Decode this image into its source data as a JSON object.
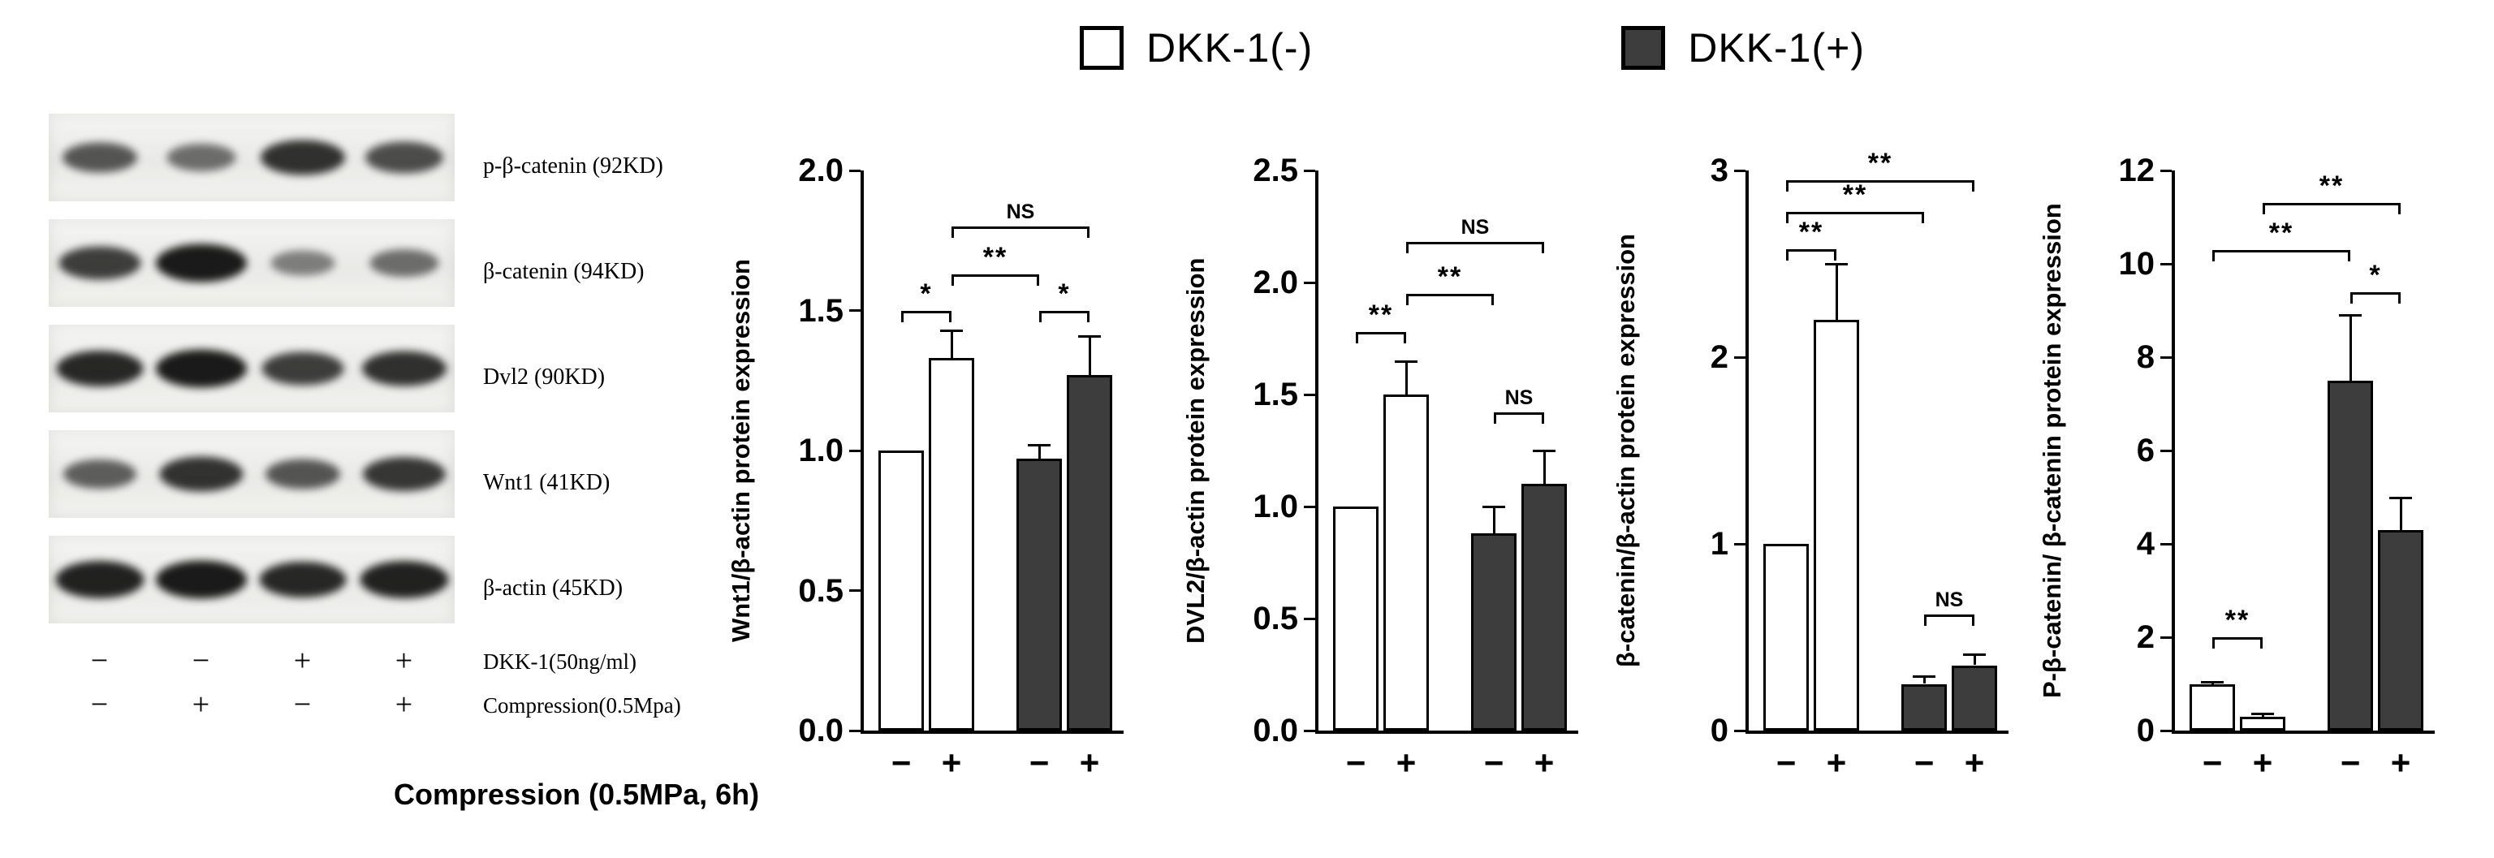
{
  "legend": {
    "items": [
      {
        "label": "DKK-1(-)",
        "fill": "#ffffff"
      },
      {
        "label": "DKK-1(+)",
        "fill": "#3d3d3d"
      }
    ]
  },
  "blot": {
    "rows": [
      {
        "label": "p-β-catenin (92KD)",
        "bands": [
          0.55,
          0.4,
          0.8,
          0.62
        ]
      },
      {
        "label": "β-catenin (94KD)",
        "bands": [
          0.72,
          0.95,
          0.28,
          0.4
        ]
      },
      {
        "label": "Dvl2 (90KD)",
        "bands": [
          0.85,
          0.95,
          0.72,
          0.8
        ]
      },
      {
        "label": "Wnt1 (41KD)",
        "bands": [
          0.5,
          0.78,
          0.55,
          0.76
        ]
      },
      {
        "label": "β-actin (45KD)",
        "bands": [
          0.9,
          0.95,
          0.85,
          0.9
        ]
      }
    ],
    "conditions": [
      {
        "signs": [
          "−",
          "−",
          "+",
          "+"
        ],
        "label": "DKK-1(50ng/ml)"
      },
      {
        "signs": [
          "−",
          "+",
          "−",
          "+"
        ],
        "label": "Compression(0.5Mpa)"
      }
    ],
    "bottom_label": "Compression (0.5MPa, 6h)"
  },
  "chart_data": [
    {
      "type": "bar",
      "ylabel": "Wnt1/β-actin protein expression",
      "xlabel": "Compression (0.5MPa, 6h)",
      "ylim": [
        0,
        2.0
      ],
      "yticks": [
        0.0,
        0.5,
        1.0,
        1.5,
        2.0
      ],
      "ytick_labels": [
        "0.0",
        "0.5",
        "1.0",
        "1.5",
        "2.0"
      ],
      "categories": [
        "−",
        "+",
        "−",
        "+"
      ],
      "bar_groups": [
        "DKK-1(-)",
        "DKK-1(-)",
        "DKK-1(+)",
        "DKK-1(+)"
      ],
      "bar_fills": [
        "#ffffff",
        "#ffffff",
        "#3d3d3d",
        "#3d3d3d"
      ],
      "values": [
        1.0,
        1.33,
        0.97,
        1.27
      ],
      "errors": [
        0.0,
        0.1,
        0.05,
        0.14
      ],
      "brackets": [
        {
          "from": 0,
          "to": 1,
          "y": 1.5,
          "label": "*"
        },
        {
          "from": 1,
          "to": 2,
          "y": 1.63,
          "label": "**"
        },
        {
          "from": 1,
          "to": 3,
          "y": 1.8,
          "label": "NS"
        },
        {
          "from": 2,
          "to": 3,
          "y": 1.5,
          "label": "*"
        }
      ]
    },
    {
      "type": "bar",
      "ylabel": "DVL2/β-actin protein expression",
      "xlabel": "Compression (0.5MPa, 6h)",
      "ylim": [
        0,
        2.5
      ],
      "yticks": [
        0.0,
        0.5,
        1.0,
        1.5,
        2.0,
        2.5
      ],
      "ytick_labels": [
        "0.0",
        "0.5",
        "1.0",
        "1.5",
        "2.0",
        "2.5"
      ],
      "categories": [
        "−",
        "+",
        "−",
        "+"
      ],
      "bar_groups": [
        "DKK-1(-)",
        "DKK-1(-)",
        "DKK-1(+)",
        "DKK-1(+)"
      ],
      "bar_fills": [
        "#ffffff",
        "#ffffff",
        "#3d3d3d",
        "#3d3d3d"
      ],
      "values": [
        1.0,
        1.5,
        0.88,
        1.1
      ],
      "errors": [
        0.0,
        0.15,
        0.12,
        0.15
      ],
      "brackets": [
        {
          "from": 0,
          "to": 1,
          "y": 1.78,
          "label": "**"
        },
        {
          "from": 1,
          "to": 2,
          "y": 1.95,
          "label": "**"
        },
        {
          "from": 1,
          "to": 3,
          "y": 2.18,
          "label": "NS"
        },
        {
          "from": 2,
          "to": 3,
          "y": 1.42,
          "label": "NS"
        }
      ]
    },
    {
      "type": "bar",
      "ylabel": "β-catenin/β-actin protein expression",
      "xlabel": "Compression (0.5MPa, 6h)",
      "ylim": [
        0,
        3
      ],
      "yticks": [
        0,
        1,
        2,
        3
      ],
      "ytick_labels": [
        "0",
        "1",
        "2",
        "3"
      ],
      "categories": [
        "−",
        "+",
        "−",
        "+"
      ],
      "bar_groups": [
        "DKK-1(-)",
        "DKK-1(-)",
        "DKK-1(+)",
        "DKK-1(+)"
      ],
      "bar_fills": [
        "#ffffff",
        "#ffffff",
        "#3d3d3d",
        "#3d3d3d"
      ],
      "values": [
        1.0,
        2.2,
        0.25,
        0.35
      ],
      "errors": [
        0.0,
        0.3,
        0.04,
        0.06
      ],
      "brackets": [
        {
          "from": 0,
          "to": 1,
          "y": 2.58,
          "label": "**"
        },
        {
          "from": 0,
          "to": 2,
          "y": 2.78,
          "label": "**"
        },
        {
          "from": 0,
          "to": 3,
          "y": 2.95,
          "label": "**"
        },
        {
          "from": 2,
          "to": 3,
          "y": 0.62,
          "label": "NS"
        }
      ]
    },
    {
      "type": "bar",
      "ylabel": "P-β-catenin/ β-catenin protein expression",
      "xlabel": "Compression (0.5MPa, 6h)",
      "ylim": [
        0,
        12
      ],
      "yticks": [
        0,
        2,
        4,
        6,
        8,
        10,
        12
      ],
      "ytick_labels": [
        "0",
        "2",
        "4",
        "6",
        "8",
        "10",
        "12"
      ],
      "categories": [
        "−",
        "+",
        "−",
        "+"
      ],
      "bar_groups": [
        "DKK-1(-)",
        "DKK-1(-)",
        "DKK-1(+)",
        "DKK-1(+)"
      ],
      "bar_fills": [
        "#ffffff",
        "#ffffff",
        "#3d3d3d",
        "#3d3d3d"
      ],
      "values": [
        1.0,
        0.3,
        7.5,
        4.3
      ],
      "errors": [
        0.05,
        0.06,
        1.4,
        0.7
      ],
      "brackets": [
        {
          "from": 0,
          "to": 1,
          "y": 2.0,
          "label": "**"
        },
        {
          "from": 0,
          "to": 2,
          "y": 10.3,
          "label": "**"
        },
        {
          "from": 1,
          "to": 3,
          "y": 11.3,
          "label": "**"
        },
        {
          "from": 2,
          "to": 3,
          "y": 9.4,
          "label": "*"
        }
      ]
    }
  ]
}
